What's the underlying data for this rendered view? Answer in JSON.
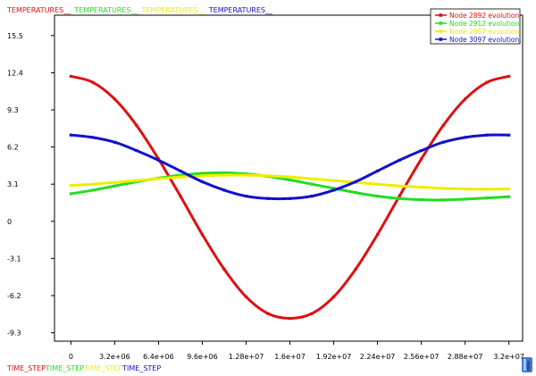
{
  "chart_data": {
    "type": "line",
    "ylabel_parts": [
      {
        "text": "TEMPERATURES__",
        "color": "#dd1111"
      },
      {
        "text": "TEMPERATURES__",
        "color": "#22dd22"
      },
      {
        "text": "TEMPERATURES__",
        "color": "#eeee00"
      },
      {
        "text": "TEMPERATURES__",
        "color": "#1111cc"
      }
    ],
    "xlabel_parts": [
      {
        "text": "TIME_STEP",
        "color": "#dd1111"
      },
      {
        "text": "TIME_STEP",
        "color": "#22dd22"
      },
      {
        "text": "TIME_STEP",
        "color": "#eeee00"
      },
      {
        "text": "TIME_STEP",
        "color": "#1111cc"
      }
    ],
    "xlim": [
      -1200000,
      33000000
    ],
    "ylim": [
      -10.0,
      17.2
    ],
    "xticks": [
      0,
      3200000,
      6400000,
      9600000,
      12800000,
      16000000,
      19200000,
      22400000,
      25600000,
      28800000,
      32000000
    ],
    "xtick_labels": [
      "0",
      "3.2e+06",
      "6.4e+06",
      "9.6e+06",
      "1.28e+07",
      "1.6e+07",
      "1.92e+07",
      "2.24e+07",
      "2.56e+07",
      "2.88e+07",
      "3.2e+07"
    ],
    "yticks": [
      15.5,
      12.4,
      9.3,
      6.2,
      3.1,
      0,
      -3.1,
      -6.2,
      -9.3
    ],
    "ytick_labels": [
      "15.5",
      "12.4",
      "9.3",
      "6.2",
      "3.1",
      "0",
      "-3.1",
      "-6.2",
      "-9.3"
    ],
    "x": [
      0,
      1600000,
      3200000,
      4800000,
      6400000,
      8000000,
      9600000,
      11200000,
      12800000,
      14400000,
      16000000,
      17600000,
      19200000,
      20800000,
      22400000,
      24000000,
      25600000,
      27200000,
      28800000,
      30400000,
      32000000
    ],
    "series": [
      {
        "name": "Node 2892 evolution",
        "color": "#dd1111",
        "values": [
          12.1,
          11.6,
          10.2,
          8.0,
          5.2,
          2.1,
          -1.1,
          -4.0,
          -6.3,
          -7.7,
          -8.1,
          -7.7,
          -6.3,
          -4.0,
          -1.1,
          2.1,
          5.2,
          8.0,
          10.2,
          11.6,
          12.1
        ]
      },
      {
        "name": "Node 2912 evolution",
        "color": "#22dd22",
        "values": [
          2.3,
          2.6,
          2.95,
          3.3,
          3.6,
          3.85,
          4.0,
          4.05,
          3.95,
          3.75,
          3.45,
          3.1,
          2.75,
          2.4,
          2.1,
          1.9,
          1.8,
          1.78,
          1.85,
          1.95,
          2.05
        ]
      },
      {
        "name": "Node 2897 evolution",
        "color": "#eeee00",
        "values": [
          3.0,
          3.1,
          3.25,
          3.4,
          3.55,
          3.7,
          3.8,
          3.85,
          3.85,
          3.8,
          3.7,
          3.55,
          3.4,
          3.25,
          3.1,
          2.95,
          2.85,
          2.75,
          2.7,
          2.68,
          2.7
        ]
      },
      {
        "name": "Node 3097 evolution.",
        "color": "#1111cc",
        "values": [
          7.2,
          7.0,
          6.6,
          5.9,
          5.1,
          4.2,
          3.3,
          2.6,
          2.1,
          1.9,
          1.9,
          2.1,
          2.6,
          3.3,
          4.2,
          5.1,
          5.9,
          6.6,
          7.0,
          7.2,
          7.2
        ]
      }
    ]
  }
}
